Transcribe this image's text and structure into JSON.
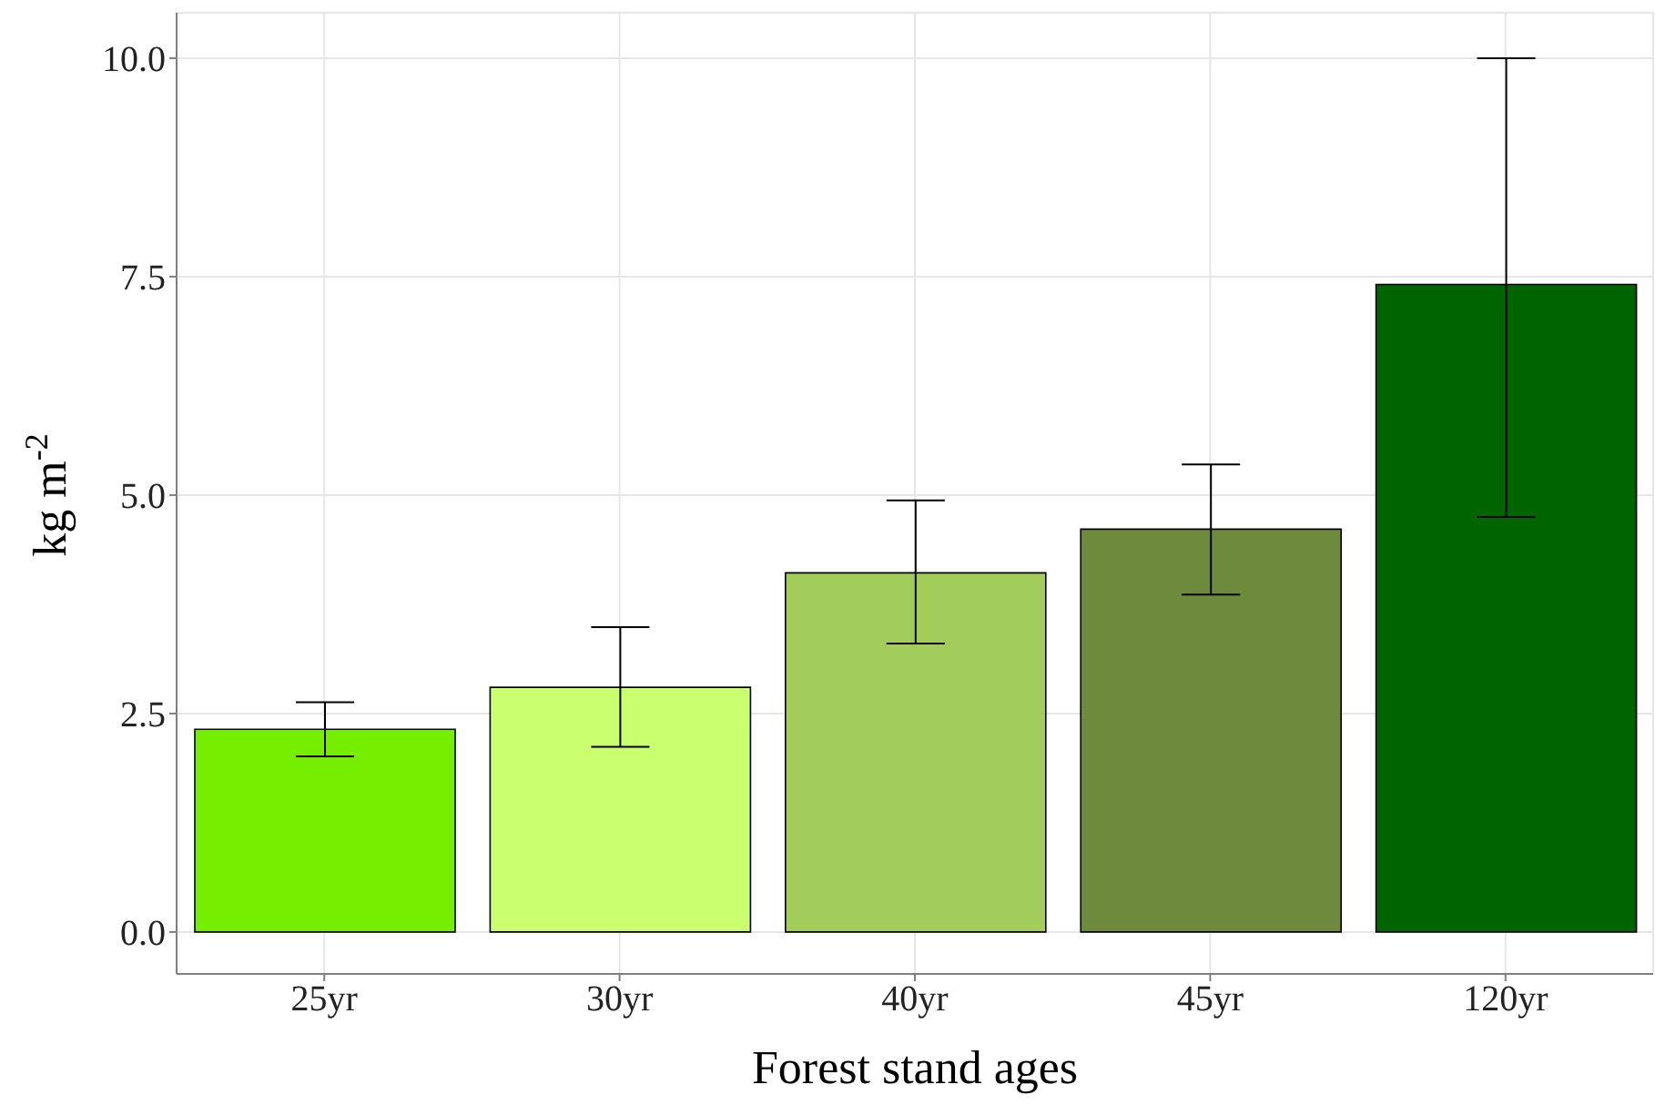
{
  "chart_data": {
    "type": "bar",
    "xlabel": "Forest stand ages",
    "ylabel": "kg m$^{-2}$",
    "categories": [
      "25yr",
      "30yr",
      "40yr",
      "45yr",
      "120yr"
    ],
    "values": [
      2.32,
      2.8,
      4.11,
      4.61,
      7.41
    ],
    "colors": [
      "#76ee00",
      "#caff70",
      "#a2cd5a",
      "#6e8b3d",
      "#006400"
    ],
    "errors": [
      [
        2.01,
        2.63
      ],
      [
        2.12,
        3.49
      ],
      [
        3.3,
        4.94
      ],
      [
        3.86,
        5.35
      ],
      [
        4.75,
        10.0
      ]
    ],
    "ylim": [
      -0.48,
      10.52
    ],
    "yticks": [
      {
        "value": 0,
        "label": "0.0"
      },
      {
        "value": 2.5,
        "label": "2.5"
      },
      {
        "value": 5,
        "label": "5.0"
      },
      {
        "value": 7.5,
        "label": "7.5"
      },
      {
        "value": 10,
        "label": "10.0"
      }
    ],
    "grid": true
  }
}
